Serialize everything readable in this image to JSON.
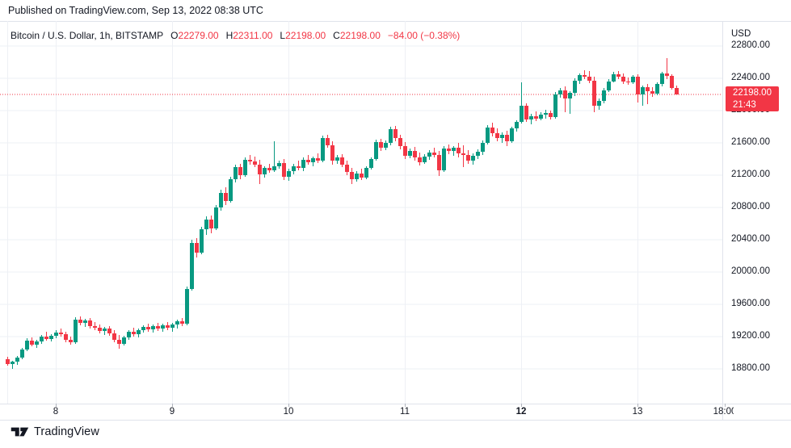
{
  "header": {
    "published": "Published on TradingView.com, Sep 13, 2022 08:38 UTC"
  },
  "legend": {
    "symbol": "Bitcoin / U.S. Dollar, 1h, BITSTAMP",
    "ohlc": {
      "o_label": "O",
      "o": "22279.00",
      "h_label": "H",
      "h": "22311.00",
      "l_label": "L",
      "l": "22198.00",
      "c_label": "C",
      "c": "22198.00",
      "change": "−84.00 (−0.38%)"
    }
  },
  "price_axis": {
    "currency": "USD",
    "badge": {
      "price": "22198.00",
      "countdown": "21:43"
    }
  },
  "footer": {
    "brand": "TradingView"
  },
  "colors": {
    "up": "#089981",
    "down": "#f23645",
    "text": "#131722",
    "grid": "#eef0f5",
    "border": "#e0e3eb",
    "accent_red": "#f23645"
  },
  "chart_data": {
    "type": "candlestick",
    "title": "Bitcoin / U.S. Dollar",
    "interval": "1h",
    "exchange": "BITSTAMP",
    "currency": "USD",
    "last_price": 22198,
    "last_candle": {
      "open": 22279,
      "high": 22311,
      "low": 22198,
      "close": 22198,
      "change": -84.0,
      "change_pct": -0.38
    },
    "countdown": "21:43",
    "y_axis": [
      {
        "price": 22800,
        "label": "22800.00"
      },
      {
        "price": 22400,
        "label": "22400.00"
      },
      {
        "price": 22000,
        "label": "22000.00"
      },
      {
        "price": 21600,
        "label": "21600.00"
      },
      {
        "price": 21200,
        "label": "21200.00"
      },
      {
        "price": 20800,
        "label": "20800.00"
      },
      {
        "price": 20400,
        "label": "20400.00"
      },
      {
        "price": 20000,
        "label": "20000.00"
      },
      {
        "price": 19600,
        "label": "19600.00"
      },
      {
        "price": 19200,
        "label": "19200.00"
      },
      {
        "price": 18800,
        "label": "18800.00"
      }
    ],
    "x_grid_bars": [
      0,
      10,
      34,
      58,
      82,
      106,
      130
    ],
    "x_ticks": [
      {
        "bar": 10,
        "label": "8",
        "bold": false
      },
      {
        "bar": 34,
        "label": "9",
        "bold": false
      },
      {
        "bar": 58,
        "label": "10",
        "bold": false
      },
      {
        "bar": 82,
        "label": "11",
        "bold": false
      },
      {
        "bar": 106,
        "label": "12",
        "bold": true
      },
      {
        "bar": 130,
        "label": "13",
        "bold": false
      },
      {
        "bar": 148,
        "label": "18:00",
        "bold": false
      }
    ],
    "candles": [
      [
        18920,
        18950,
        18840,
        18860
      ],
      [
        18860,
        18900,
        18800,
        18890
      ],
      [
        18890,
        18960,
        18850,
        18940
      ],
      [
        18940,
        19060,
        18920,
        19040
      ],
      [
        19040,
        19180,
        19020,
        19150
      ],
      [
        19150,
        19190,
        19080,
        19100
      ],
      [
        19100,
        19160,
        19060,
        19140
      ],
      [
        19140,
        19220,
        19110,
        19200
      ],
      [
        19200,
        19260,
        19150,
        19170
      ],
      [
        19170,
        19230,
        19140,
        19210
      ],
      [
        19210,
        19280,
        19180,
        19250
      ],
      [
        19250,
        19300,
        19200,
        19230
      ],
      [
        19230,
        19260,
        19130,
        19160
      ],
      [
        19160,
        19200,
        19100,
        19130
      ],
      [
        19130,
        19440,
        19110,
        19410
      ],
      [
        19410,
        19450,
        19340,
        19370
      ],
      [
        19370,
        19420,
        19320,
        19400
      ],
      [
        19400,
        19430,
        19300,
        19330
      ],
      [
        19330,
        19380,
        19280,
        19310
      ],
      [
        19310,
        19350,
        19240,
        19270
      ],
      [
        19270,
        19320,
        19220,
        19300
      ],
      [
        19300,
        19330,
        19210,
        19240
      ],
      [
        19240,
        19280,
        19130,
        19160
      ],
      [
        19160,
        19220,
        19050,
        19110
      ],
      [
        19110,
        19210,
        19090,
        19190
      ],
      [
        19190,
        19280,
        19160,
        19260
      ],
      [
        19260,
        19310,
        19200,
        19230
      ],
      [
        19230,
        19300,
        19190,
        19280
      ],
      [
        19280,
        19340,
        19250,
        19320
      ],
      [
        19320,
        19360,
        19260,
        19290
      ],
      [
        19290,
        19350,
        19250,
        19330
      ],
      [
        19330,
        19370,
        19270,
        19300
      ],
      [
        19300,
        19360,
        19260,
        19340
      ],
      [
        19340,
        19380,
        19280,
        19310
      ],
      [
        19310,
        19370,
        19260,
        19350
      ],
      [
        19350,
        19410,
        19300,
        19390
      ],
      [
        19390,
        19430,
        19330,
        19360
      ],
      [
        19360,
        19820,
        19340,
        19790
      ],
      [
        19790,
        20400,
        19770,
        20360
      ],
      [
        20360,
        20420,
        20180,
        20240
      ],
      [
        20240,
        20560,
        20220,
        20530
      ],
      [
        20530,
        20690,
        20460,
        20650
      ],
      [
        20650,
        20700,
        20480,
        20540
      ],
      [
        20540,
        20830,
        20520,
        20800
      ],
      [
        20800,
        21020,
        20760,
        20980
      ],
      [
        20980,
        21050,
        20830,
        20880
      ],
      [
        20880,
        21180,
        20860,
        21150
      ],
      [
        21150,
        21330,
        21110,
        21300
      ],
      [
        21300,
        21340,
        21150,
        21200
      ],
      [
        21200,
        21420,
        21180,
        21390
      ],
      [
        21390,
        21450,
        21330,
        21370
      ],
      [
        21370,
        21430,
        21300,
        21330
      ],
      [
        21330,
        21390,
        21090,
        21210
      ],
      [
        21210,
        21310,
        21170,
        21290
      ],
      [
        21290,
        21340,
        21230,
        21260
      ],
      [
        21260,
        21620,
        21240,
        21310
      ],
      [
        21310,
        21380,
        21280,
        21350
      ],
      [
        21350,
        21400,
        21140,
        21180
      ],
      [
        21180,
        21280,
        21130,
        21250
      ],
      [
        21250,
        21340,
        21210,
        21310
      ],
      [
        21310,
        21380,
        21260,
        21290
      ],
      [
        21290,
        21420,
        21250,
        21390
      ],
      [
        21390,
        21450,
        21330,
        21360
      ],
      [
        21360,
        21430,
        21310,
        21410
      ],
      [
        21410,
        21470,
        21350,
        21380
      ],
      [
        21380,
        21690,
        21360,
        21660
      ],
      [
        21660,
        21700,
        21540,
        21570
      ],
      [
        21570,
        21620,
        21330,
        21380
      ],
      [
        21380,
        21450,
        21340,
        21420
      ],
      [
        21420,
        21460,
        21300,
        21330
      ],
      [
        21330,
        21380,
        21200,
        21240
      ],
      [
        21240,
        21290,
        21090,
        21150
      ],
      [
        21150,
        21250,
        21120,
        21220
      ],
      [
        21220,
        21280,
        21140,
        21170
      ],
      [
        21170,
        21310,
        21150,
        21290
      ],
      [
        21290,
        21420,
        21270,
        21400
      ],
      [
        21400,
        21640,
        21380,
        21610
      ],
      [
        21610,
        21650,
        21500,
        21540
      ],
      [
        21540,
        21630,
        21510,
        21600
      ],
      [
        21600,
        21800,
        21570,
        21770
      ],
      [
        21770,
        21810,
        21620,
        21660
      ],
      [
        21660,
        21700,
        21520,
        21560
      ],
      [
        21560,
        21610,
        21400,
        21440
      ],
      [
        21440,
        21530,
        21410,
        21500
      ],
      [
        21500,
        21550,
        21380,
        21420
      ],
      [
        21420,
        21480,
        21320,
        21360
      ],
      [
        21360,
        21460,
        21340,
        21430
      ],
      [
        21430,
        21510,
        21390,
        21480
      ],
      [
        21480,
        21540,
        21420,
        21450
      ],
      [
        21450,
        21500,
        21190,
        21260
      ],
      [
        21260,
        21560,
        21240,
        21530
      ],
      [
        21530,
        21580,
        21460,
        21500
      ],
      [
        21500,
        21560,
        21440,
        21540
      ],
      [
        21540,
        21600,
        21420,
        21470
      ],
      [
        21470,
        21570,
        21300,
        21450
      ],
      [
        21450,
        21510,
        21340,
        21380
      ],
      [
        21380,
        21470,
        21330,
        21440
      ],
      [
        21440,
        21520,
        21400,
        21490
      ],
      [
        21490,
        21630,
        21450,
        21600
      ],
      [
        21600,
        21820,
        21580,
        21790
      ],
      [
        21790,
        21850,
        21680,
        21720
      ],
      [
        21720,
        21780,
        21620,
        21660
      ],
      [
        21660,
        21730,
        21600,
        21700
      ],
      [
        21700,
        21750,
        21560,
        21620
      ],
      [
        21620,
        21800,
        21600,
        21780
      ],
      [
        21780,
        21880,
        21740,
        21860
      ],
      [
        21860,
        22350,
        21840,
        22060
      ],
      [
        22060,
        22090,
        21860,
        21890
      ],
      [
        21890,
        21960,
        21830,
        21930
      ],
      [
        21930,
        21990,
        21870,
        21900
      ],
      [
        21900,
        21980,
        21880,
        21950
      ],
      [
        21950,
        22010,
        21900,
        21970
      ],
      [
        21970,
        22000,
        21890,
        21920
      ],
      [
        21920,
        22230,
        21900,
        22200
      ],
      [
        22200,
        22280,
        22160,
        22250
      ],
      [
        22250,
        22300,
        21980,
        22150
      ],
      [
        22150,
        22240,
        21960,
        22220
      ],
      [
        22220,
        22400,
        22180,
        22370
      ],
      [
        22370,
        22460,
        22330,
        22440
      ],
      [
        22440,
        22500,
        22390,
        22420
      ],
      [
        22420,
        22490,
        22340,
        22370
      ],
      [
        22370,
        22420,
        21980,
        22060
      ],
      [
        22060,
        22150,
        22010,
        22120
      ],
      [
        22120,
        22280,
        22090,
        22250
      ],
      [
        22250,
        22390,
        22230,
        22360
      ],
      [
        22360,
        22480,
        22350,
        22450
      ],
      [
        22450,
        22490,
        22390,
        22420
      ],
      [
        22420,
        22460,
        22330,
        22360
      ],
      [
        22360,
        22410,
        22320,
        22350
      ],
      [
        22350,
        22440,
        22330,
        22420
      ],
      [
        22420,
        22450,
        22100,
        22200
      ],
      [
        22200,
        22310,
        22060,
        22290
      ],
      [
        22290,
        22330,
        22080,
        22240
      ],
      [
        22240,
        22290,
        22170,
        22210
      ],
      [
        22210,
        22350,
        22190,
        22330
      ],
      [
        22330,
        22480,
        22300,
        22460
      ],
      [
        22460,
        22650,
        22390,
        22430
      ],
      [
        22430,
        22450,
        22260,
        22282
      ],
      [
        22279,
        22311,
        22198,
        22198
      ]
    ]
  }
}
